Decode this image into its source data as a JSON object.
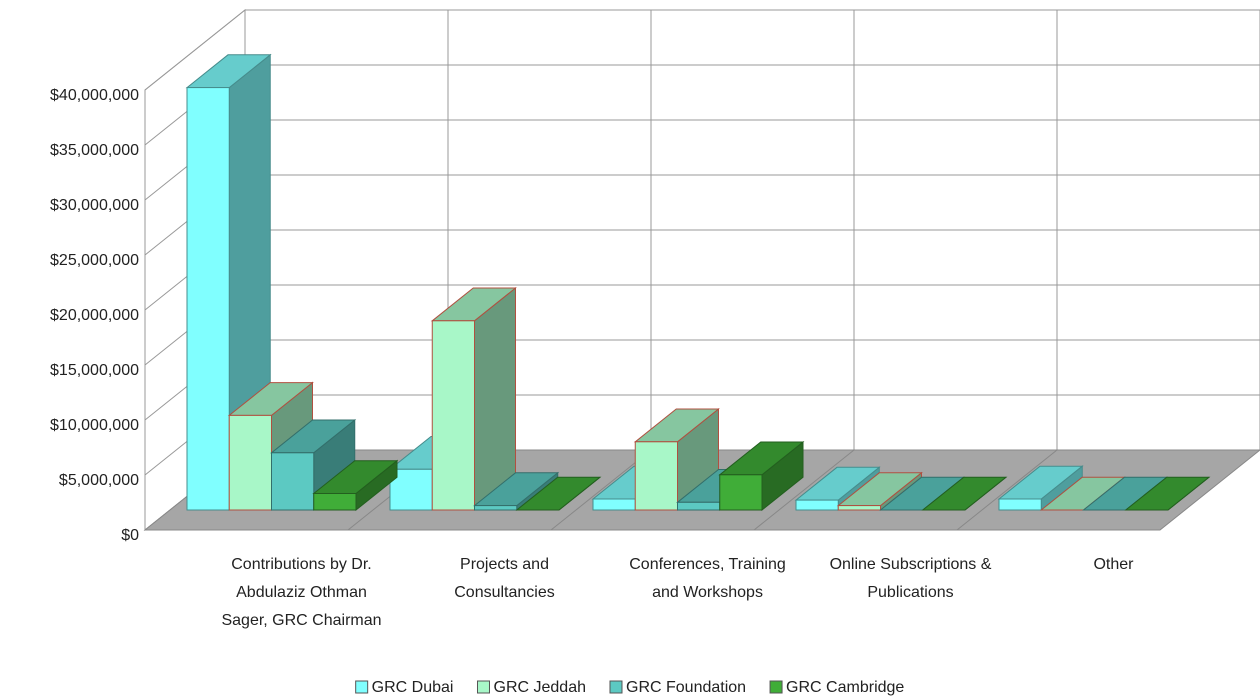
{
  "chart_data": {
    "type": "bar3d",
    "categories": [
      "Contributions by Dr. Abdulaziz Othman Sager, GRC Chairman",
      "Projects and Consultancies",
      "Conferences, Training and Workshops",
      "Online Subscriptions & Publications",
      "Other"
    ],
    "series": [
      {
        "name": "GRC Dubai",
        "color": "#80ffff",
        "values": [
          38400000,
          3700000,
          1000000,
          900000,
          1000000
        ]
      },
      {
        "name": "GRC Jeddah",
        "color": "#a8f7c8",
        "values": [
          8600000,
          17200000,
          6200000,
          400000,
          0
        ]
      },
      {
        "name": "GRC Foundation",
        "color": "#5cc9c2",
        "values": [
          5200000,
          400000,
          700000,
          0,
          0
        ]
      },
      {
        "name": "GRC Cambridge",
        "color": "#40ad38",
        "values": [
          1500000,
          0,
          3200000,
          0,
          0
        ]
      }
    ],
    "ylim": [
      0,
      40000000
    ],
    "yticks": [
      {
        "value": 0,
        "label": "$0"
      },
      {
        "value": 5000000,
        "label": "$5,000,000"
      },
      {
        "value": 10000000,
        "label": "$10,000,000"
      },
      {
        "value": 15000000,
        "label": "$15,000,000"
      },
      {
        "value": 20000000,
        "label": "$20,000,000"
      },
      {
        "value": 25000000,
        "label": "$25,000,000"
      },
      {
        "value": 30000000,
        "label": "$30,000,000"
      },
      {
        "value": 35000000,
        "label": "$35,000,000"
      },
      {
        "value": 40000000,
        "label": "$40,000,000"
      }
    ],
    "grid": true,
    "legend": "bottom"
  }
}
